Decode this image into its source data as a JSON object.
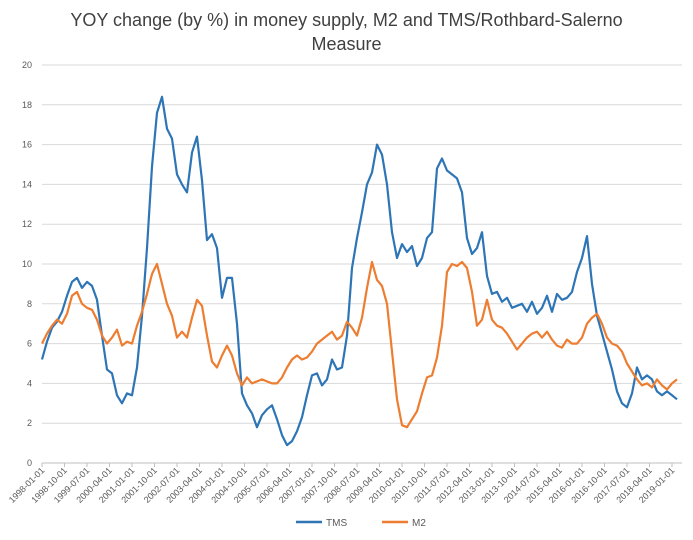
{
  "chart_data": {
    "type": "line",
    "title_line1": "YOY change (by %) in money supply, M2 and TMS/Rothbard-Salerno",
    "title_line2": "Measure",
    "ylim": [
      0,
      20
    ],
    "yticks": [
      "0",
      "2",
      "4",
      "6",
      "8",
      "10",
      "12",
      "14",
      "16",
      "18",
      "20"
    ],
    "grid": true,
    "legend_position": "bottom",
    "xticks": [
      "1998-01-01",
      "1998-10-01",
      "1999-07-01",
      "2000-04-01",
      "2001-01-01",
      "2001-10-01",
      "2002-07-01",
      "2003-04-01",
      "2004-01-01",
      "2004-10-01",
      "2005-07-01",
      "2006-04-01",
      "2007-01-01",
      "2007-10-01",
      "2008-07-01",
      "2009-04-01",
      "2010-01-01",
      "2010-10-01",
      "2011-07-01",
      "2012-04-01",
      "2013-01-01",
      "2013-10-01",
      "2014-07-01",
      "2015-04-01",
      "2016-01-01",
      "2016-10-01",
      "2017-07-01",
      "2018-04-01",
      "2019-01-01"
    ],
    "x_start": "1998-01",
    "x_end": "2019-05",
    "series": [
      {
        "name": "TMS",
        "color": "#2e75b6",
        "points": [
          [
            "1998-01",
            5.2
          ],
          [
            "1998-03",
            6.1
          ],
          [
            "1998-05",
            6.8
          ],
          [
            "1998-07",
            7.1
          ],
          [
            "1998-09",
            7.6
          ],
          [
            "1998-11",
            8.4
          ],
          [
            "1999-01",
            9.1
          ],
          [
            "1999-03",
            9.3
          ],
          [
            "1999-05",
            8.8
          ],
          [
            "1999-07",
            9.1
          ],
          [
            "1999-09",
            8.9
          ],
          [
            "1999-11",
            8.2
          ],
          [
            "2000-01",
            6.4
          ],
          [
            "2000-03",
            4.7
          ],
          [
            "2000-05",
            4.5
          ],
          [
            "2000-07",
            3.4
          ],
          [
            "2000-09",
            3.0
          ],
          [
            "2000-11",
            3.5
          ],
          [
            "2001-01",
            3.4
          ],
          [
            "2001-03",
            4.8
          ],
          [
            "2001-05",
            7.4
          ],
          [
            "2001-07",
            10.8
          ],
          [
            "2001-09",
            14.9
          ],
          [
            "2001-11",
            17.6
          ],
          [
            "2002-01",
            18.4
          ],
          [
            "2002-03",
            16.8
          ],
          [
            "2002-05",
            16.3
          ],
          [
            "2002-07",
            14.5
          ],
          [
            "2002-09",
            14.0
          ],
          [
            "2002-11",
            13.6
          ],
          [
            "2003-01",
            15.6
          ],
          [
            "2003-03",
            16.4
          ],
          [
            "2003-05",
            14.2
          ],
          [
            "2003-07",
            11.2
          ],
          [
            "2003-09",
            11.5
          ],
          [
            "2003-11",
            10.8
          ],
          [
            "2004-01",
            8.3
          ],
          [
            "2004-03",
            9.3
          ],
          [
            "2004-05",
            9.3
          ],
          [
            "2004-07",
            7.0
          ],
          [
            "2004-09",
            3.5
          ],
          [
            "2004-11",
            2.9
          ],
          [
            "2005-01",
            2.5
          ],
          [
            "2005-03",
            1.8
          ],
          [
            "2005-05",
            2.4
          ],
          [
            "2005-07",
            2.7
          ],
          [
            "2005-09",
            2.9
          ],
          [
            "2005-11",
            2.2
          ],
          [
            "2006-01",
            1.4
          ],
          [
            "2006-03",
            0.9
          ],
          [
            "2006-05",
            1.1
          ],
          [
            "2006-07",
            1.6
          ],
          [
            "2006-09",
            2.3
          ],
          [
            "2006-11",
            3.4
          ],
          [
            "2007-01",
            4.4
          ],
          [
            "2007-03",
            4.5
          ],
          [
            "2007-05",
            3.9
          ],
          [
            "2007-07",
            4.2
          ],
          [
            "2007-09",
            5.2
          ],
          [
            "2007-11",
            4.7
          ],
          [
            "2008-01",
            4.8
          ],
          [
            "2008-03",
            6.4
          ],
          [
            "2008-05",
            9.8
          ],
          [
            "2008-07",
            11.3
          ],
          [
            "2008-09",
            12.6
          ],
          [
            "2008-11",
            14.0
          ],
          [
            "2009-01",
            14.6
          ],
          [
            "2009-03",
            16.0
          ],
          [
            "2009-05",
            15.5
          ],
          [
            "2009-07",
            14.0
          ],
          [
            "2009-09",
            11.6
          ],
          [
            "2009-11",
            10.3
          ],
          [
            "2010-01",
            11.0
          ],
          [
            "2010-03",
            10.6
          ],
          [
            "2010-05",
            10.9
          ],
          [
            "2010-07",
            9.9
          ],
          [
            "2010-09",
            10.3
          ],
          [
            "2010-11",
            11.3
          ],
          [
            "2011-01",
            11.6
          ],
          [
            "2011-03",
            14.8
          ],
          [
            "2011-05",
            15.3
          ],
          [
            "2011-07",
            14.7
          ],
          [
            "2011-09",
            14.5
          ],
          [
            "2011-11",
            14.3
          ],
          [
            "2012-01",
            13.6
          ],
          [
            "2012-03",
            11.3
          ],
          [
            "2012-05",
            10.5
          ],
          [
            "2012-07",
            10.8
          ],
          [
            "2012-09",
            11.6
          ],
          [
            "2012-11",
            9.4
          ],
          [
            "2013-01",
            8.5
          ],
          [
            "2013-03",
            8.6
          ],
          [
            "2013-05",
            8.1
          ],
          [
            "2013-07",
            8.3
          ],
          [
            "2013-09",
            7.8
          ],
          [
            "2013-11",
            7.9
          ],
          [
            "2014-01",
            8.0
          ],
          [
            "2014-03",
            7.6
          ],
          [
            "2014-05",
            8.1
          ],
          [
            "2014-07",
            7.5
          ],
          [
            "2014-09",
            7.8
          ],
          [
            "2014-11",
            8.4
          ],
          [
            "2015-01",
            7.6
          ],
          [
            "2015-03",
            8.5
          ],
          [
            "2015-05",
            8.2
          ],
          [
            "2015-07",
            8.3
          ],
          [
            "2015-09",
            8.6
          ],
          [
            "2015-11",
            9.6
          ],
          [
            "2016-01",
            10.3
          ],
          [
            "2016-03",
            11.4
          ],
          [
            "2016-05",
            9.0
          ],
          [
            "2016-07",
            7.4
          ],
          [
            "2016-09",
            6.5
          ],
          [
            "2016-11",
            5.6
          ],
          [
            "2017-01",
            4.7
          ],
          [
            "2017-03",
            3.6
          ],
          [
            "2017-05",
            3.0
          ],
          [
            "2017-07",
            2.8
          ],
          [
            "2017-09",
            3.5
          ],
          [
            "2017-11",
            4.8
          ],
          [
            "2018-01",
            4.2
          ],
          [
            "2018-03",
            4.4
          ],
          [
            "2018-05",
            4.2
          ],
          [
            "2018-07",
            3.6
          ],
          [
            "2018-09",
            3.4
          ],
          [
            "2018-11",
            3.6
          ],
          [
            "2019-01",
            3.4
          ],
          [
            "2019-03",
            3.2
          ]
        ]
      },
      {
        "name": "M2",
        "color": "#ed7d31",
        "points": [
          [
            "1998-01",
            6.0
          ],
          [
            "1998-03",
            6.5
          ],
          [
            "1998-05",
            6.9
          ],
          [
            "1998-07",
            7.2
          ],
          [
            "1998-09",
            7.0
          ],
          [
            "1998-11",
            7.5
          ],
          [
            "1999-01",
            8.4
          ],
          [
            "1999-03",
            8.6
          ],
          [
            "1999-05",
            8.0
          ],
          [
            "1999-07",
            7.8
          ],
          [
            "1999-09",
            7.7
          ],
          [
            "1999-11",
            7.2
          ],
          [
            "2000-01",
            6.4
          ],
          [
            "2000-03",
            6.0
          ],
          [
            "2000-05",
            6.3
          ],
          [
            "2000-07",
            6.7
          ],
          [
            "2000-09",
            5.9
          ],
          [
            "2000-11",
            6.1
          ],
          [
            "2001-01",
            6.0
          ],
          [
            "2001-03",
            6.9
          ],
          [
            "2001-05",
            7.6
          ],
          [
            "2001-07",
            8.5
          ],
          [
            "2001-09",
            9.5
          ],
          [
            "2001-11",
            10.0
          ],
          [
            "2002-01",
            9.0
          ],
          [
            "2002-03",
            8.0
          ],
          [
            "2002-05",
            7.4
          ],
          [
            "2002-07",
            6.3
          ],
          [
            "2002-09",
            6.6
          ],
          [
            "2002-11",
            6.3
          ],
          [
            "2003-01",
            7.3
          ],
          [
            "2003-03",
            8.2
          ],
          [
            "2003-05",
            7.9
          ],
          [
            "2003-07",
            6.4
          ],
          [
            "2003-09",
            5.1
          ],
          [
            "2003-11",
            4.8
          ],
          [
            "2004-01",
            5.4
          ],
          [
            "2004-03",
            5.9
          ],
          [
            "2004-05",
            5.4
          ],
          [
            "2004-07",
            4.5
          ],
          [
            "2004-09",
            3.9
          ],
          [
            "2004-11",
            4.3
          ],
          [
            "2005-01",
            4.0
          ],
          [
            "2005-03",
            4.1
          ],
          [
            "2005-05",
            4.2
          ],
          [
            "2005-07",
            4.1
          ],
          [
            "2005-09",
            4.0
          ],
          [
            "2005-11",
            4.0
          ],
          [
            "2006-01",
            4.3
          ],
          [
            "2006-03",
            4.8
          ],
          [
            "2006-05",
            5.2
          ],
          [
            "2006-07",
            5.4
          ],
          [
            "2006-09",
            5.2
          ],
          [
            "2006-11",
            5.3
          ],
          [
            "2007-01",
            5.6
          ],
          [
            "2007-03",
            6.0
          ],
          [
            "2007-05",
            6.2
          ],
          [
            "2007-07",
            6.4
          ],
          [
            "2007-09",
            6.6
          ],
          [
            "2007-11",
            6.2
          ],
          [
            "2008-01",
            6.4
          ],
          [
            "2008-03",
            7.1
          ],
          [
            "2008-05",
            6.8
          ],
          [
            "2008-07",
            6.4
          ],
          [
            "2008-09",
            7.3
          ],
          [
            "2008-11",
            8.8
          ],
          [
            "2009-01",
            10.1
          ],
          [
            "2009-03",
            9.2
          ],
          [
            "2009-05",
            8.9
          ],
          [
            "2009-07",
            8.0
          ],
          [
            "2009-09",
            5.6
          ],
          [
            "2009-11",
            3.2
          ],
          [
            "2010-01",
            1.9
          ],
          [
            "2010-03",
            1.8
          ],
          [
            "2010-05",
            2.2
          ],
          [
            "2010-07",
            2.6
          ],
          [
            "2010-09",
            3.5
          ],
          [
            "2010-11",
            4.3
          ],
          [
            "2011-01",
            4.4
          ],
          [
            "2011-03",
            5.3
          ],
          [
            "2011-05",
            6.9
          ],
          [
            "2011-07",
            9.6
          ],
          [
            "2011-09",
            10.0
          ],
          [
            "2011-11",
            9.9
          ],
          [
            "2012-01",
            10.1
          ],
          [
            "2012-03",
            9.8
          ],
          [
            "2012-05",
            8.6
          ],
          [
            "2012-07",
            6.9
          ],
          [
            "2012-09",
            7.2
          ],
          [
            "2012-11",
            8.2
          ],
          [
            "2013-01",
            7.2
          ],
          [
            "2013-03",
            6.9
          ],
          [
            "2013-05",
            6.8
          ],
          [
            "2013-07",
            6.5
          ],
          [
            "2013-09",
            6.1
          ],
          [
            "2013-11",
            5.7
          ],
          [
            "2014-01",
            6.0
          ],
          [
            "2014-03",
            6.3
          ],
          [
            "2014-05",
            6.5
          ],
          [
            "2014-07",
            6.6
          ],
          [
            "2014-09",
            6.3
          ],
          [
            "2014-11",
            6.6
          ],
          [
            "2015-01",
            6.2
          ],
          [
            "2015-03",
            5.9
          ],
          [
            "2015-05",
            5.8
          ],
          [
            "2015-07",
            6.2
          ],
          [
            "2015-09",
            6.0
          ],
          [
            "2015-11",
            6.0
          ],
          [
            "2016-01",
            6.3
          ],
          [
            "2016-03",
            7.0
          ],
          [
            "2016-05",
            7.3
          ],
          [
            "2016-07",
            7.5
          ],
          [
            "2016-09",
            7.0
          ],
          [
            "2016-11",
            6.3
          ],
          [
            "2017-01",
            6.0
          ],
          [
            "2017-03",
            5.9
          ],
          [
            "2017-05",
            5.6
          ],
          [
            "2017-07",
            5.0
          ],
          [
            "2017-09",
            4.6
          ],
          [
            "2017-11",
            4.2
          ],
          [
            "2018-01",
            3.9
          ],
          [
            "2018-03",
            4.0
          ],
          [
            "2018-05",
            3.8
          ],
          [
            "2018-07",
            4.2
          ],
          [
            "2018-09",
            3.9
          ],
          [
            "2018-11",
            3.7
          ],
          [
            "2019-01",
            4.0
          ],
          [
            "2019-03",
            4.2
          ]
        ]
      }
    ]
  }
}
